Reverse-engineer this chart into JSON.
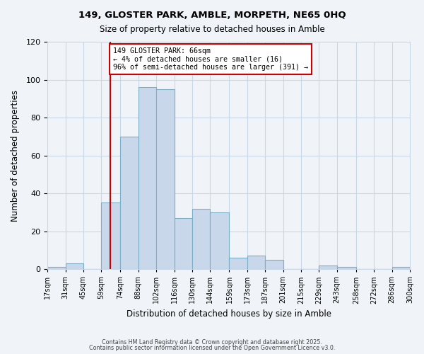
{
  "title1": "149, GLOSTER PARK, AMBLE, MORPETH, NE65 0HQ",
  "title2": "Size of property relative to detached houses in Amble",
  "xlabel": "Distribution of detached houses by size in Amble",
  "ylabel": "Number of detached properties",
  "bin_labels": [
    "17sqm",
    "31sqm",
    "45sqm",
    "59sqm",
    "74sqm",
    "88sqm",
    "102sqm",
    "116sqm",
    "130sqm",
    "144sqm",
    "159sqm",
    "173sqm",
    "187sqm",
    "201sqm",
    "215sqm",
    "229sqm",
    "243sqm",
    "258sqm",
    "272sqm",
    "286sqm",
    "300sqm"
  ],
  "bin_edges": [
    17,
    31,
    45,
    59,
    74,
    88,
    102,
    116,
    130,
    144,
    159,
    173,
    187,
    201,
    215,
    229,
    243,
    258,
    272,
    286,
    300
  ],
  "bar_heights": [
    1,
    3,
    0,
    35,
    70,
    96,
    95,
    27,
    32,
    30,
    6,
    7,
    5,
    0,
    0,
    2,
    1,
    0,
    0,
    1
  ],
  "bar_color": "#c8d8ea",
  "bar_edge_color": "#7aafc8",
  "grid_color": "#c8d8e8",
  "background_color": "#f0f4f8",
  "vline_x": 66,
  "vline_color": "#cc0000",
  "annotation_title": "149 GLOSTER PARK: 66sqm",
  "annotation_line1": "← 4% of detached houses are smaller (16)",
  "annotation_line2": "96% of semi-detached houses are larger (391) →",
  "annotation_box_color": "#ffffff",
  "annotation_box_edge": "#cc0000",
  "ylim": [
    0,
    120
  ],
  "yticks": [
    0,
    20,
    40,
    60,
    80,
    100,
    120
  ],
  "footnote1": "Contains HM Land Registry data © Crown copyright and database right 2025.",
  "footnote2": "Contains public sector information licensed under the Open Government Licence v3.0."
}
